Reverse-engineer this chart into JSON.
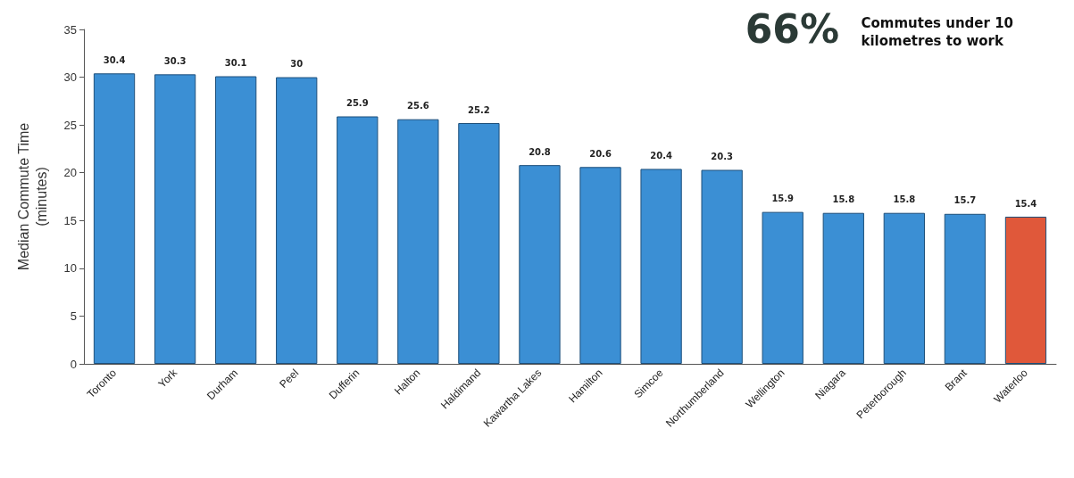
{
  "chart_data": {
    "type": "bar",
    "ylabel": "Median Commute Time\n(minutes)",
    "categories": [
      "Toronto",
      "York",
      "Durham",
      "Peel",
      "Dufferin",
      "Halton",
      "Haldimand",
      "Kawartha Lakes",
      "Hamilton",
      "Simcoe",
      "Northumberland",
      "Wellington",
      "Niagara",
      "Peterborough",
      "Brant",
      "Waterloo"
    ],
    "values": [
      30.4,
      30.3,
      30.1,
      30,
      25.9,
      25.6,
      25.2,
      20.8,
      20.6,
      20.4,
      20.3,
      15.9,
      15.8,
      15.8,
      15.7,
      15.4
    ],
    "colors": [
      "#3b8fd4",
      "#3b8fd4",
      "#3b8fd4",
      "#3b8fd4",
      "#3b8fd4",
      "#3b8fd4",
      "#3b8fd4",
      "#3b8fd4",
      "#3b8fd4",
      "#3b8fd4",
      "#3b8fd4",
      "#3b8fd4",
      "#3b8fd4",
      "#3b8fd4",
      "#3b8fd4",
      "#e0583a"
    ],
    "ylim": [
      0,
      35
    ],
    "yticks": [
      0,
      5,
      10,
      15,
      20,
      25,
      30,
      35
    ],
    "data_labels": true,
    "annotations": [
      "66%",
      "Commutes under 10\nkilometres to work"
    ]
  }
}
